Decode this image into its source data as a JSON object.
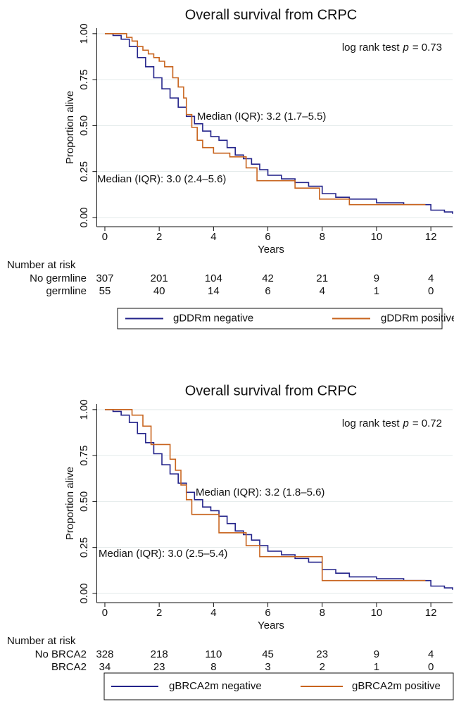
{
  "chart_data": [
    {
      "type": "survival",
      "title": "Overall survival from CRPC",
      "x_label": "Years",
      "y_label": "Proportion alive",
      "xlim": [
        -0.3,
        12.8
      ],
      "xticks": [
        0,
        2,
        4,
        6,
        8,
        10,
        12
      ],
      "ylim": [
        -0.05,
        1.03
      ],
      "yticks": [
        {
          "value": 0,
          "label": "0.00"
        },
        {
          "value": 0.25,
          "label": "0.25"
        },
        {
          "value": 0.5,
          "label": "0.50"
        },
        {
          "value": 0.75,
          "label": "0.75"
        },
        {
          "value": 1,
          "label": "1.00"
        }
      ],
      "grid": true,
      "test": {
        "text": "log rank test",
        "symbol": "p",
        "value": "= 0.73"
      },
      "annotations": [
        "Median (IQR): 3.2 (1.7–5.5)",
        "Median (IQR): 3.0 (2.4–5.6)"
      ],
      "series": [
        {
          "name": "gDDRm negative",
          "color": "#23238a",
          "x": [
            0,
            0.3,
            0.6,
            0.9,
            1.2,
            1.5,
            1.8,
            2.1,
            2.4,
            2.7,
            3.0,
            3.3,
            3.6,
            3.9,
            4.2,
            4.5,
            4.8,
            5.1,
            5.4,
            5.7,
            6.0,
            6.5,
            7.0,
            7.5,
            8.0,
            8.5,
            9.0,
            10.0,
            11.0,
            12.0,
            12.5,
            12.8
          ],
          "values": [
            1.0,
            0.99,
            0.97,
            0.93,
            0.87,
            0.82,
            0.76,
            0.7,
            0.65,
            0.6,
            0.55,
            0.51,
            0.47,
            0.44,
            0.42,
            0.38,
            0.34,
            0.32,
            0.29,
            0.26,
            0.23,
            0.21,
            0.19,
            0.17,
            0.13,
            0.11,
            0.1,
            0.08,
            0.07,
            0.04,
            0.03,
            0.02
          ]
        },
        {
          "name": "gDDRm positive",
          "color": "#c8641e",
          "x": [
            0,
            0.8,
            1.0,
            1.2,
            1.4,
            1.6,
            1.8,
            2.0,
            2.2,
            2.5,
            2.7,
            2.9,
            3.0,
            3.2,
            3.4,
            3.6,
            4.0,
            4.6,
            5.2,
            5.6,
            7.0,
            7.9,
            9.0,
            11.8
          ],
          "values": [
            1.0,
            0.98,
            0.96,
            0.93,
            0.91,
            0.89,
            0.87,
            0.85,
            0.82,
            0.76,
            0.71,
            0.65,
            0.56,
            0.49,
            0.42,
            0.38,
            0.35,
            0.33,
            0.27,
            0.2,
            0.16,
            0.1,
            0.07,
            0.07
          ]
        }
      ],
      "risk_table": {
        "title": "Number at risk",
        "rows": [
          {
            "label": "No germline",
            "values": [
              307,
              201,
              104,
              42,
              21,
              9,
              4
            ]
          },
          {
            "label": "germline",
            "values": [
              55,
              40,
              14,
              6,
              4,
              1,
              0
            ]
          }
        ]
      }
    },
    {
      "type": "survival",
      "title": "Overall survival from CRPC",
      "x_label": "Years",
      "y_label": "Proportion alive",
      "xlim": [
        -0.3,
        12.8
      ],
      "xticks": [
        0,
        2,
        4,
        6,
        8,
        10,
        12
      ],
      "ylim": [
        -0.05,
        1.03
      ],
      "yticks": [
        {
          "value": 0,
          "label": "0.00"
        },
        {
          "value": 0.25,
          "label": "0.25"
        },
        {
          "value": 0.5,
          "label": "0.50"
        },
        {
          "value": 0.75,
          "label": "0.75"
        },
        {
          "value": 1,
          "label": "1.00"
        }
      ],
      "grid": true,
      "test": {
        "text": "log rank test",
        "symbol": "p",
        "value": "= 0.72"
      },
      "annotations": [
        "Median (IQR): 3.2 (1.8–5.6)",
        "Median (IQR): 3.0 (2.5–5.4)"
      ],
      "series": [
        {
          "name": "gBRCA2m negative",
          "color": "#23238a",
          "x": [
            0,
            0.3,
            0.6,
            0.9,
            1.2,
            1.5,
            1.8,
            2.1,
            2.4,
            2.7,
            3.0,
            3.3,
            3.6,
            3.9,
            4.2,
            4.5,
            4.8,
            5.1,
            5.4,
            5.7,
            6.0,
            6.5,
            7.0,
            7.5,
            8.0,
            8.5,
            9.0,
            10.0,
            11.0,
            12.0,
            12.5,
            12.8
          ],
          "values": [
            1.0,
            0.99,
            0.97,
            0.93,
            0.87,
            0.82,
            0.76,
            0.7,
            0.65,
            0.6,
            0.55,
            0.51,
            0.47,
            0.45,
            0.42,
            0.38,
            0.34,
            0.32,
            0.29,
            0.26,
            0.23,
            0.21,
            0.19,
            0.17,
            0.13,
            0.11,
            0.09,
            0.08,
            0.07,
            0.04,
            0.03,
            0.02
          ]
        },
        {
          "name": "gBRCA2m positive",
          "color": "#c8641e",
          "x": [
            0,
            1.0,
            1.4,
            1.7,
            2.4,
            2.6,
            2.8,
            3.0,
            3.2,
            4.2,
            5.2,
            5.7,
            8.0,
            11.8
          ],
          "values": [
            1.0,
            0.97,
            0.91,
            0.81,
            0.73,
            0.67,
            0.59,
            0.51,
            0.43,
            0.33,
            0.26,
            0.2,
            0.07,
            0.07
          ]
        }
      ],
      "risk_table": {
        "title": "Number at risk",
        "rows": [
          {
            "label": "No BRCA2",
            "values": [
              328,
              218,
              110,
              45,
              23,
              9,
              4
            ]
          },
          {
            "label": "BRCA2",
            "values": [
              34,
              23,
              8,
              3,
              2,
              1,
              0
            ]
          }
        ]
      }
    }
  ]
}
